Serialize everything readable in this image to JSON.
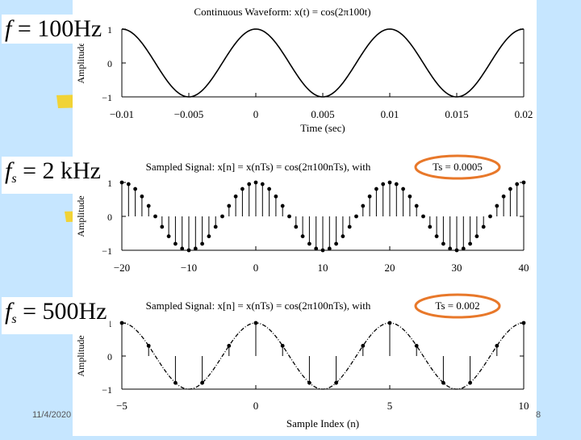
{
  "slide": {
    "date": "11/4/2020",
    "page_number": "8",
    "labels": {
      "f": "f",
      "f_value": "= 100Hz",
      "fs1": "f",
      "fs1_sub": "s",
      "fs1_value": "= 2 kHz",
      "fs2": "f",
      "fs2_sub": "s",
      "fs2_value": "= 500Hz"
    },
    "highlight_color": "#e8782a",
    "background_color": "#c6e6ff",
    "accent_color": "#f5d020"
  },
  "chart_data": [
    {
      "type": "line",
      "title": "Continuous Waveform: x(t) = cos(2π100t)",
      "xlabel": "Time (sec)",
      "ylabel": "Amplitude",
      "xlim": [
        -0.01,
        0.02
      ],
      "ylim": [
        -1,
        1
      ],
      "xticks": [
        "−0.01",
        "−0.005",
        "0",
        "0.005",
        "0.01",
        "0.015",
        "0.02"
      ],
      "xtick_values": [
        -0.01,
        -0.005,
        0,
        0.005,
        0.01,
        0.015,
        0.02
      ],
      "yticks": [
        "1",
        "0",
        "−1"
      ],
      "ytick_values": [
        1,
        0,
        -1
      ],
      "function": "cos(2*pi*100*t)",
      "grid": false
    },
    {
      "type": "scatter",
      "style": "stem",
      "title": "Sampled Signal: x[n] = x(nTs) = cos(2π100nTs), with",
      "title_highlight": "Ts = 0.0005",
      "xlabel": "",
      "ylabel": "Amplitude",
      "xlim": [
        -20,
        40
      ],
      "ylim": [
        -1,
        1
      ],
      "xticks": [
        "−20",
        "−10",
        "0",
        "10",
        "20",
        "30",
        "40"
      ],
      "xtick_values": [
        -20,
        -10,
        0,
        10,
        20,
        30,
        40
      ],
      "yticks": [
        "1",
        "0",
        "−1"
      ],
      "ytick_values": [
        1,
        0,
        -1
      ],
      "n_range": [
        -20,
        40
      ],
      "Ts": 0.0005,
      "f": 100,
      "grid": false
    },
    {
      "type": "scatter",
      "style": "stem-with-dashed-envelope",
      "title": "Sampled Signal: x[n] = x(nTs) = cos(2π100nTs), with",
      "title_highlight": "Ts = 0.002",
      "xlabel": "Sample Index (n)",
      "ylabel": "Amplitude",
      "xlim": [
        -5,
        10
      ],
      "ylim": [
        -1,
        1
      ],
      "xticks": [
        "−5",
        "0",
        "5",
        "10"
      ],
      "xtick_values": [
        -5,
        0,
        5,
        10
      ],
      "yticks": [
        "1",
        "0",
        "−1"
      ],
      "ytick_values": [
        1,
        0,
        -1
      ],
      "n_range": [
        -5,
        10
      ],
      "Ts": 0.002,
      "f": 100,
      "grid": false
    }
  ]
}
